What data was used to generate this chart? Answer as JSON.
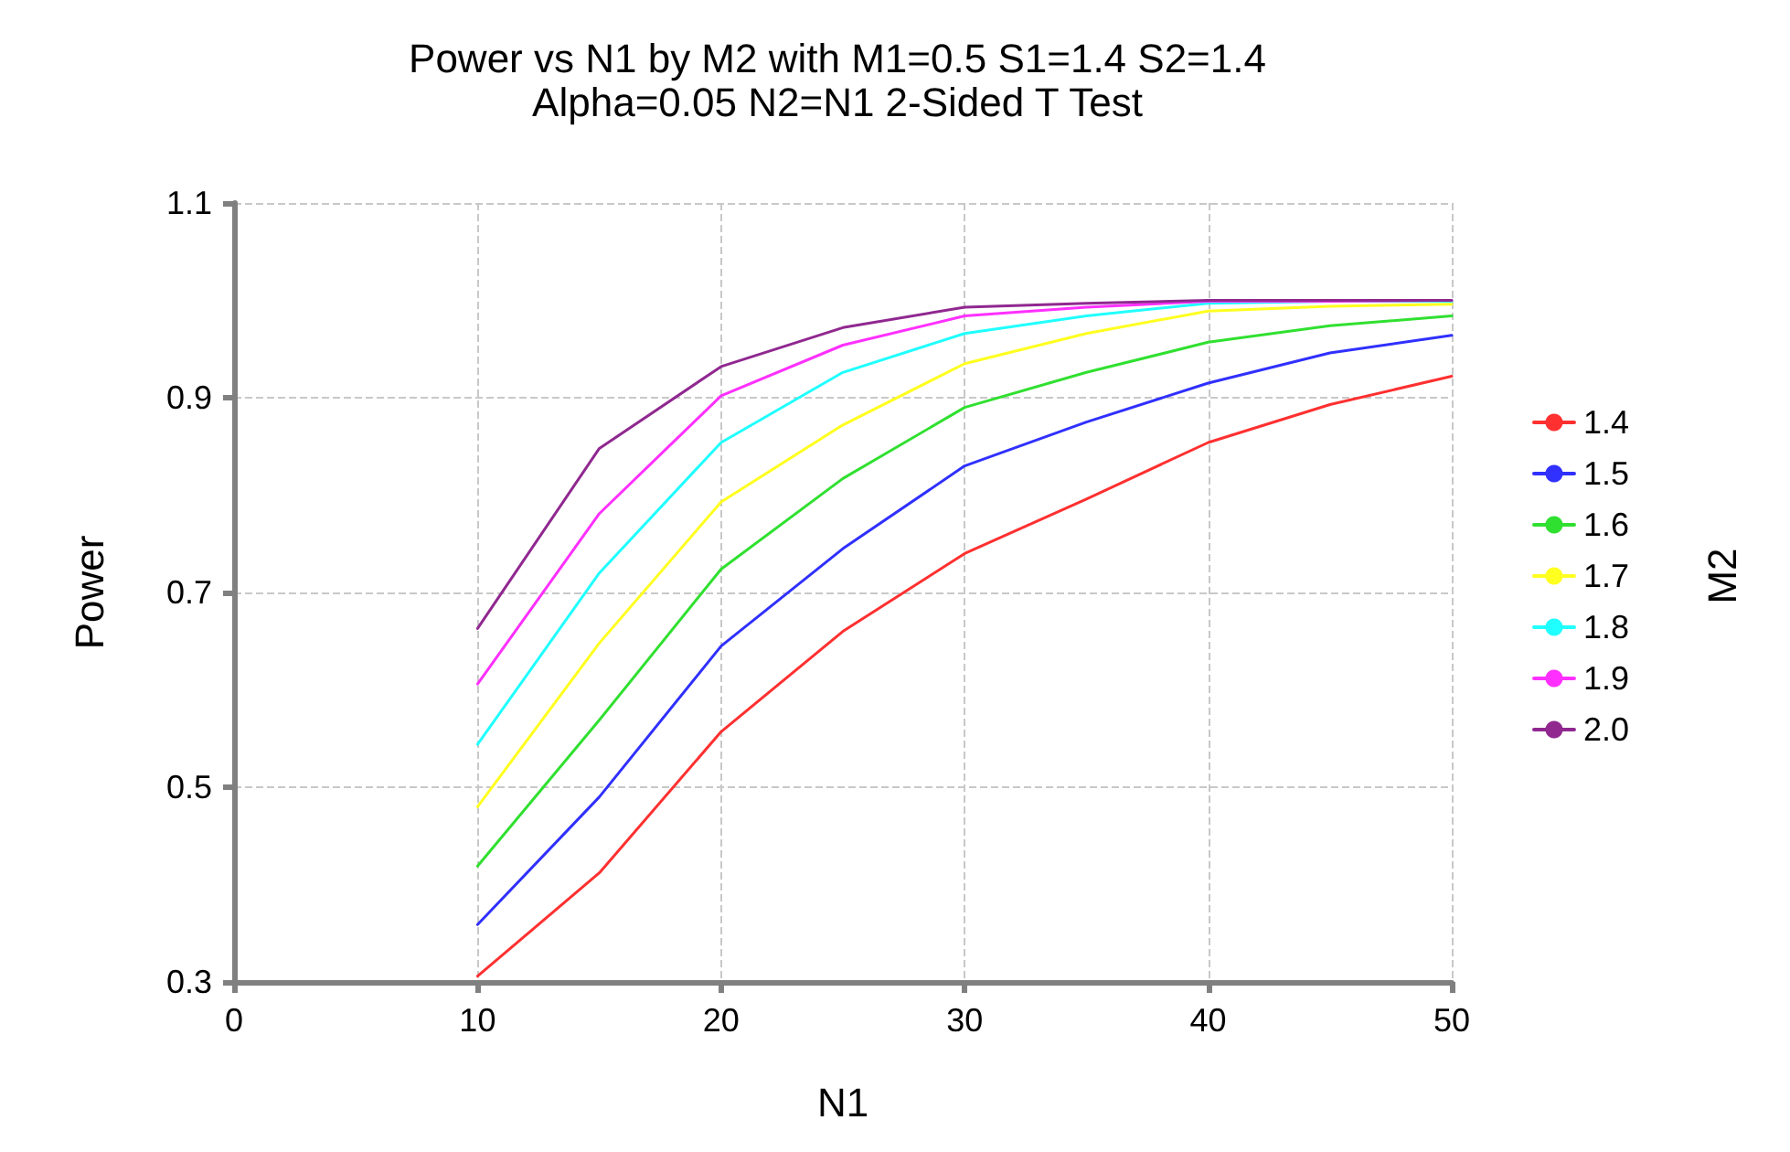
{
  "chart_data": {
    "type": "line",
    "title": "Power vs N1 by M2 with M1=0.5 S1=1.4 S2=1.4",
    "subtitle": "Alpha=0.05 N2=N1 2-Sided T Test",
    "xlabel": "N1",
    "ylabel": "Power",
    "legend_title": "M2",
    "legend": "right",
    "grid": true,
    "marker": "none",
    "line_style": "solid",
    "x": [
      10,
      15,
      20,
      25,
      30,
      35,
      40,
      45,
      50
    ],
    "xlim": [
      0,
      50
    ],
    "xticks": [
      0,
      10,
      20,
      30,
      40,
      50
    ],
    "ylim": [
      0.3,
      1.1
    ],
    "yticks": [
      0.3,
      0.5,
      0.7,
      0.9,
      1.1
    ],
    "series": [
      {
        "name": "1.4",
        "color": "#ff3030",
        "values": [
          0.306,
          0.412,
          0.557,
          0.66,
          0.74,
          0.796,
          0.854,
          0.893,
          0.922
        ]
      },
      {
        "name": "1.5",
        "color": "#3030ff",
        "values": [
          0.359,
          0.49,
          0.645,
          0.745,
          0.83,
          0.875,
          0.915,
          0.946,
          0.964
        ]
      },
      {
        "name": "1.6",
        "color": "#30e030",
        "values": [
          0.419,
          0.569,
          0.724,
          0.817,
          0.89,
          0.926,
          0.957,
          0.974,
          0.984
        ]
      },
      {
        "name": "1.7",
        "color": "#ffff20",
        "values": [
          0.48,
          0.648,
          0.793,
          0.872,
          0.935,
          0.966,
          0.989,
          0.994,
          0.996
        ]
      },
      {
        "name": "1.8",
        "color": "#20ffff",
        "values": [
          0.544,
          0.72,
          0.854,
          0.926,
          0.966,
          0.984,
          0.997,
          0.999,
          0.999
        ]
      },
      {
        "name": "1.9",
        "color": "#ff30ff",
        "values": [
          0.606,
          0.781,
          0.902,
          0.954,
          0.984,
          0.993,
          0.999,
          0.999,
          1.0
        ]
      },
      {
        "name": "2.0",
        "color": "#902890",
        "values": [
          0.663,
          0.848,
          0.932,
          0.972,
          0.993,
          0.997,
          1.0,
          1.0,
          1.0
        ]
      }
    ]
  }
}
